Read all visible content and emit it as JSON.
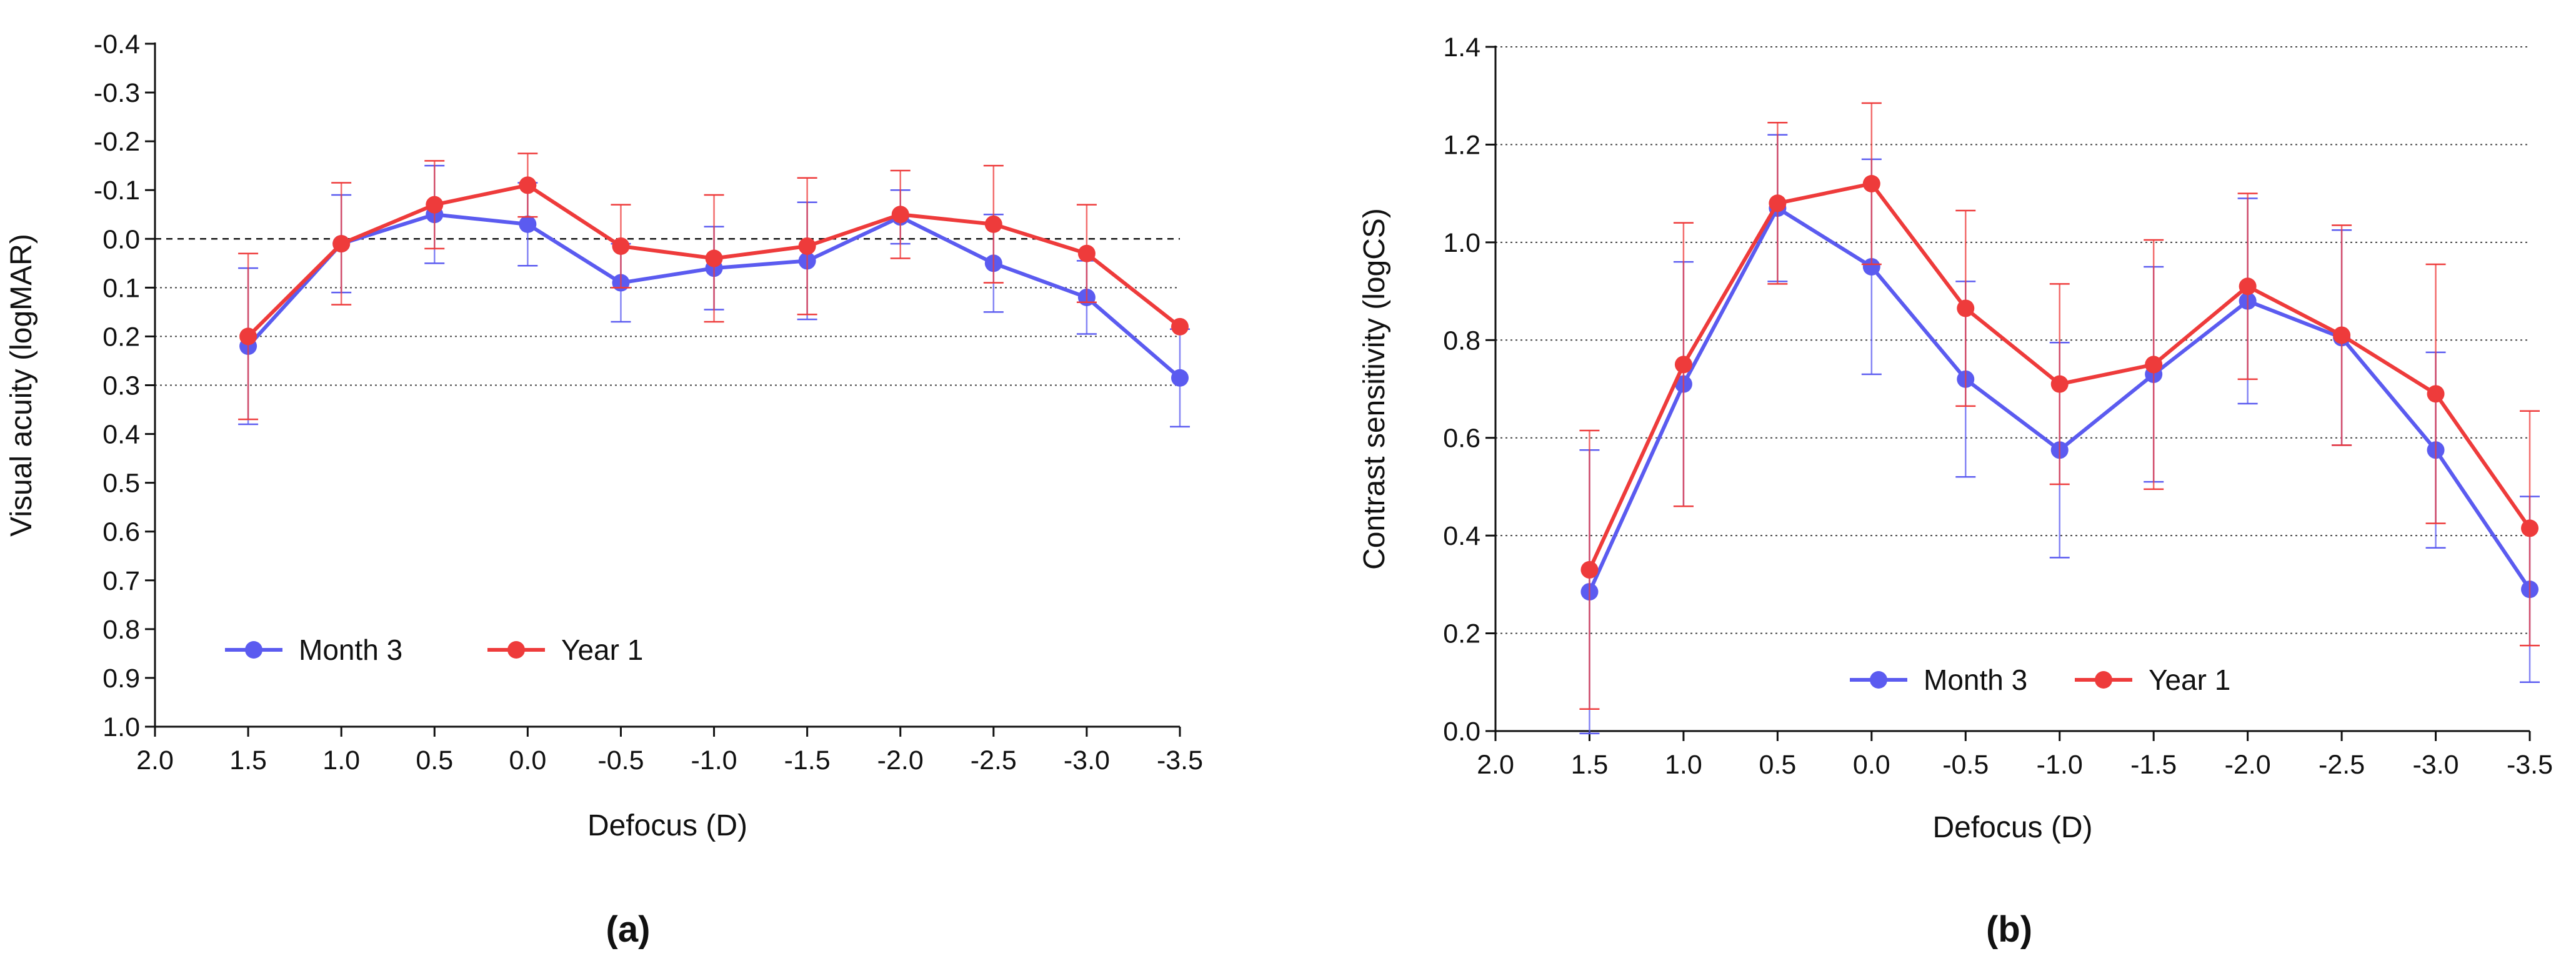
{
  "figure": {
    "colors": {
      "month3": "#5b5bf0",
      "year1": "#ee3b3b",
      "axis": "#111111",
      "grid": "#444444"
    }
  },
  "chart_data": [
    {
      "panel_label": "(a)",
      "type": "line",
      "title": "",
      "xlabel": "Defocus (D)",
      "ylabel": "Visual acuity (logMAR)",
      "x_ticks": [
        "2.0",
        "1.5",
        "1.0",
        "0.5",
        "0.0",
        "-0.5",
        "-1.0",
        "-1.5",
        "-2.0",
        "-2.5",
        "-3.0",
        "-3.5"
      ],
      "x_values": [
        2.0,
        1.5,
        1.0,
        0.5,
        0.0,
        -0.5,
        -1.0,
        -1.5,
        -2.0,
        -2.5,
        -3.0,
        -3.5
      ],
      "y_ticks": [
        "-0.4",
        "-0.3",
        "-0.2",
        "-0.1",
        "0.0",
        "0.1",
        "0.2",
        "0.3",
        "0.4",
        "0.5",
        "0.6",
        "0.7",
        "0.8",
        "0.9",
        "1.0"
      ],
      "y_tick_values": [
        -0.4,
        -0.3,
        -0.2,
        -0.1,
        0.0,
        0.1,
        0.2,
        0.3,
        0.4,
        0.5,
        0.6,
        0.7,
        0.8,
        0.9,
        1.0
      ],
      "ylim": [
        -0.4,
        1.0
      ],
      "y_inverted": true,
      "reference_line": 0.0,
      "gridlines": [
        0.1,
        0.2,
        0.3
      ],
      "legend_position": "bottom-left",
      "series": [
        {
          "name": "Month 3",
          "color": "#5b5bf0",
          "x": [
            1.5,
            1.0,
            0.5,
            0.0,
            -0.5,
            -1.0,
            -1.5,
            -2.0,
            -2.5,
            -3.0,
            -3.5
          ],
          "y": [
            0.22,
            0.01,
            -0.05,
            -0.03,
            0.09,
            0.06,
            0.045,
            -0.045,
            0.05,
            0.12,
            0.285
          ],
          "err": [
            0.16,
            0.1,
            0.1,
            0.085,
            0.08,
            0.085,
            0.12,
            0.055,
            0.1,
            0.075,
            0.1
          ]
        },
        {
          "name": "Year 1",
          "color": "#ee3b3b",
          "x": [
            1.5,
            1.0,
            0.5,
            0.0,
            -0.5,
            -1.0,
            -1.5,
            -2.0,
            -2.5,
            -3.0,
            -3.5
          ],
          "y": [
            0.2,
            0.01,
            -0.07,
            -0.11,
            0.015,
            0.04,
            0.015,
            -0.05,
            -0.03,
            0.03,
            0.18
          ],
          "err": [
            0.17,
            0.125,
            0.09,
            0.065,
            0.085,
            0.13,
            0.14,
            0.09,
            0.12,
            0.1,
            0.0
          ]
        }
      ]
    },
    {
      "panel_label": "(b)",
      "type": "line",
      "title": "",
      "xlabel": "Defocus (D)",
      "ylabel": "Contrast sensitivity (logCS)",
      "x_ticks": [
        "2.0",
        "1.5",
        "1.0",
        "0.5",
        "0.0",
        "-0.5",
        "-1.0",
        "-1.5",
        "-2.0",
        "-2.5",
        "-3.0",
        "-3.5"
      ],
      "x_values": [
        2.0,
        1.5,
        1.0,
        0.5,
        0.0,
        -0.5,
        -1.0,
        -1.5,
        -2.0,
        -2.5,
        -3.0,
        -3.5
      ],
      "y_ticks": [
        "0.0",
        "0.2",
        "0.4",
        "0.6",
        "0.8",
        "1.0",
        "1.2",
        "1.4"
      ],
      "y_tick_values": [
        0.0,
        0.2,
        0.4,
        0.6,
        0.8,
        1.0,
        1.2,
        1.4
      ],
      "ylim": [
        0.0,
        1.4
      ],
      "y_inverted": false,
      "gridlines": [
        0.2,
        0.4,
        0.6,
        0.8,
        1.0,
        1.2,
        1.4
      ],
      "legend_position": "bottom-center",
      "series": [
        {
          "name": "Month 3",
          "color": "#5b5bf0",
          "x": [
            1.5,
            1.0,
            0.5,
            0.0,
            -0.5,
            -1.0,
            -1.5,
            -2.0,
            -2.5,
            -3.0,
            -3.5
          ],
          "y": [
            0.285,
            0.71,
            1.07,
            0.95,
            0.72,
            0.575,
            0.73,
            0.88,
            0.805,
            0.575,
            0.29
          ],
          "err": [
            0.29,
            0.25,
            0.15,
            0.22,
            0.2,
            0.22,
            0.22,
            0.21,
            0.22,
            0.2,
            0.19
          ]
        },
        {
          "name": "Year 1",
          "color": "#ee3b3b",
          "x": [
            1.5,
            1.0,
            0.5,
            0.0,
            -0.5,
            -1.0,
            -1.5,
            -2.0,
            -2.5,
            -3.0,
            -3.5
          ],
          "y": [
            0.33,
            0.75,
            1.08,
            1.12,
            0.865,
            0.71,
            0.75,
            0.91,
            0.81,
            0.69,
            0.415
          ],
          "err": [
            0.285,
            0.29,
            0.165,
            0.165,
            0.2,
            0.205,
            0.255,
            0.19,
            0.225,
            0.265,
            0.24
          ]
        }
      ]
    }
  ]
}
